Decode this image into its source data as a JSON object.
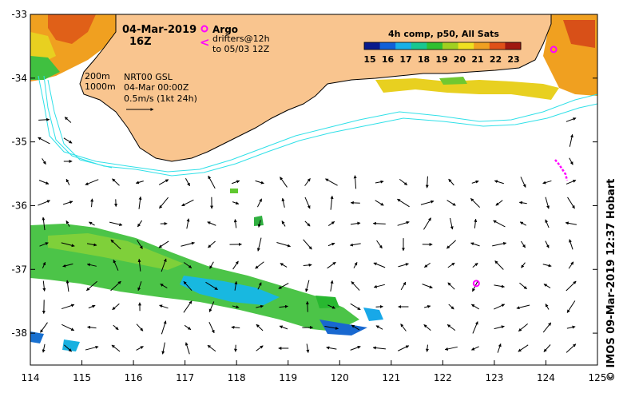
{
  "header": {
    "date": "04-Mar-2019",
    "hour": "16Z",
    "argo_label": "Argo",
    "drifters_line1": "drifters@12h",
    "drifters_line2": "to 05/03 12Z",
    "drifter_symbol": "<",
    "product_line1": "NRT00 GSL",
    "product_line2": "04-Mar 00:00Z",
    "product_line3": "0.5m/s (1kt 24h)",
    "depth_200": "200m",
    "depth_1000": "1000m"
  },
  "colorbar": {
    "title": "4h comp, p50, All Sats",
    "ticks": [
      "15",
      "16",
      "17",
      "18",
      "19",
      "20",
      "21",
      "22",
      "23"
    ],
    "colors": [
      "#0a1a8c",
      "#1060d8",
      "#18b0e8",
      "#18c890",
      "#30c030",
      "#a0d020",
      "#f0e020",
      "#f0a020",
      "#e05018",
      "#a01810"
    ]
  },
  "axes": {
    "x_ticks": [
      "114",
      "115",
      "116",
      "117",
      "118",
      "119",
      "120",
      "121",
      "122",
      "123",
      "124",
      "125"
    ],
    "y_ticks": [
      "-33",
      "-34",
      "-35",
      "-36",
      "-37",
      "-38"
    ],
    "lon_range": [
      114,
      125
    ],
    "lat_range": [
      -38.5,
      -33
    ]
  },
  "credit": "© IMOS 09-Mar-2019 12:37 Hobart",
  "colors": {
    "land": "#f9c58f",
    "isobath": "#30e0e8",
    "argo": "#ff00ff",
    "arrow": "#000000"
  },
  "argo_floats": [
    {
      "lon": 122.65,
      "lat": -37.22
    },
    {
      "lon": 124.15,
      "lat": -33.55
    }
  ]
}
